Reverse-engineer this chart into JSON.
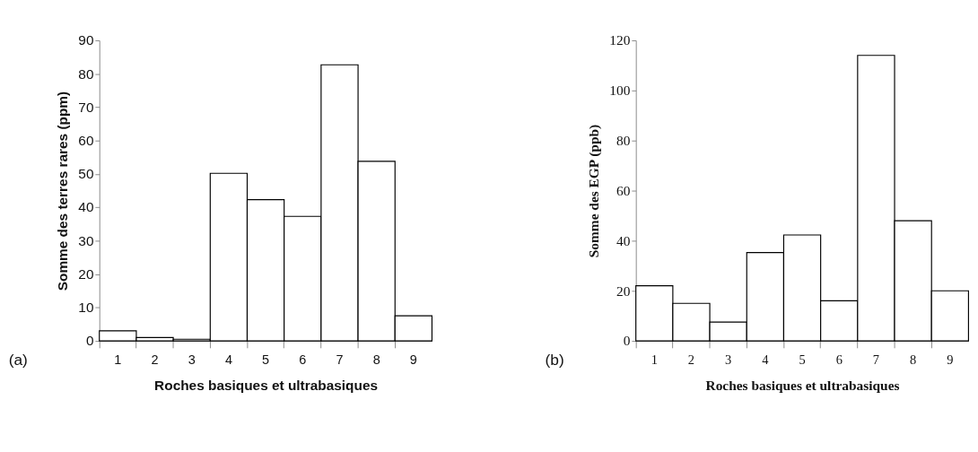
{
  "chart_data": [
    {
      "type": "bar",
      "xlabel": "Roches basiques et ultrabasiques",
      "ylabel": "Somme des terres rares (ppm)",
      "categories": [
        "1",
        "2",
        "3",
        "4",
        "5",
        "6",
        "7",
        "8",
        "9"
      ],
      "values": [
        3,
        1,
        0.5,
        50.2,
        42.3,
        37.3,
        82.7,
        53.8,
        7.5
      ],
      "color": "#ffffff",
      "ylim": [
        0,
        90
      ],
      "yticks": [
        0,
        10,
        20,
        30,
        40,
        50,
        60,
        70,
        80,
        90
      ],
      "grid": false,
      "annotations": [
        "(a)"
      ]
    },
    {
      "type": "bar",
      "xlabel": "Roches basiques et ultrabasiques",
      "ylabel": "Somme des EGP (ppb)",
      "categories": [
        "1",
        "2",
        "3",
        "4",
        "5",
        "6",
        "7",
        "8",
        "9"
      ],
      "values": [
        22,
        15,
        7.5,
        35.3,
        42.3,
        16,
        114,
        48,
        20
      ],
      "color": "#ffffff",
      "ylim": [
        0,
        120
      ],
      "yticks": [
        0,
        20,
        40,
        60,
        80,
        100,
        120
      ],
      "grid": false,
      "annotations": [
        "(b)"
      ]
    }
  ]
}
